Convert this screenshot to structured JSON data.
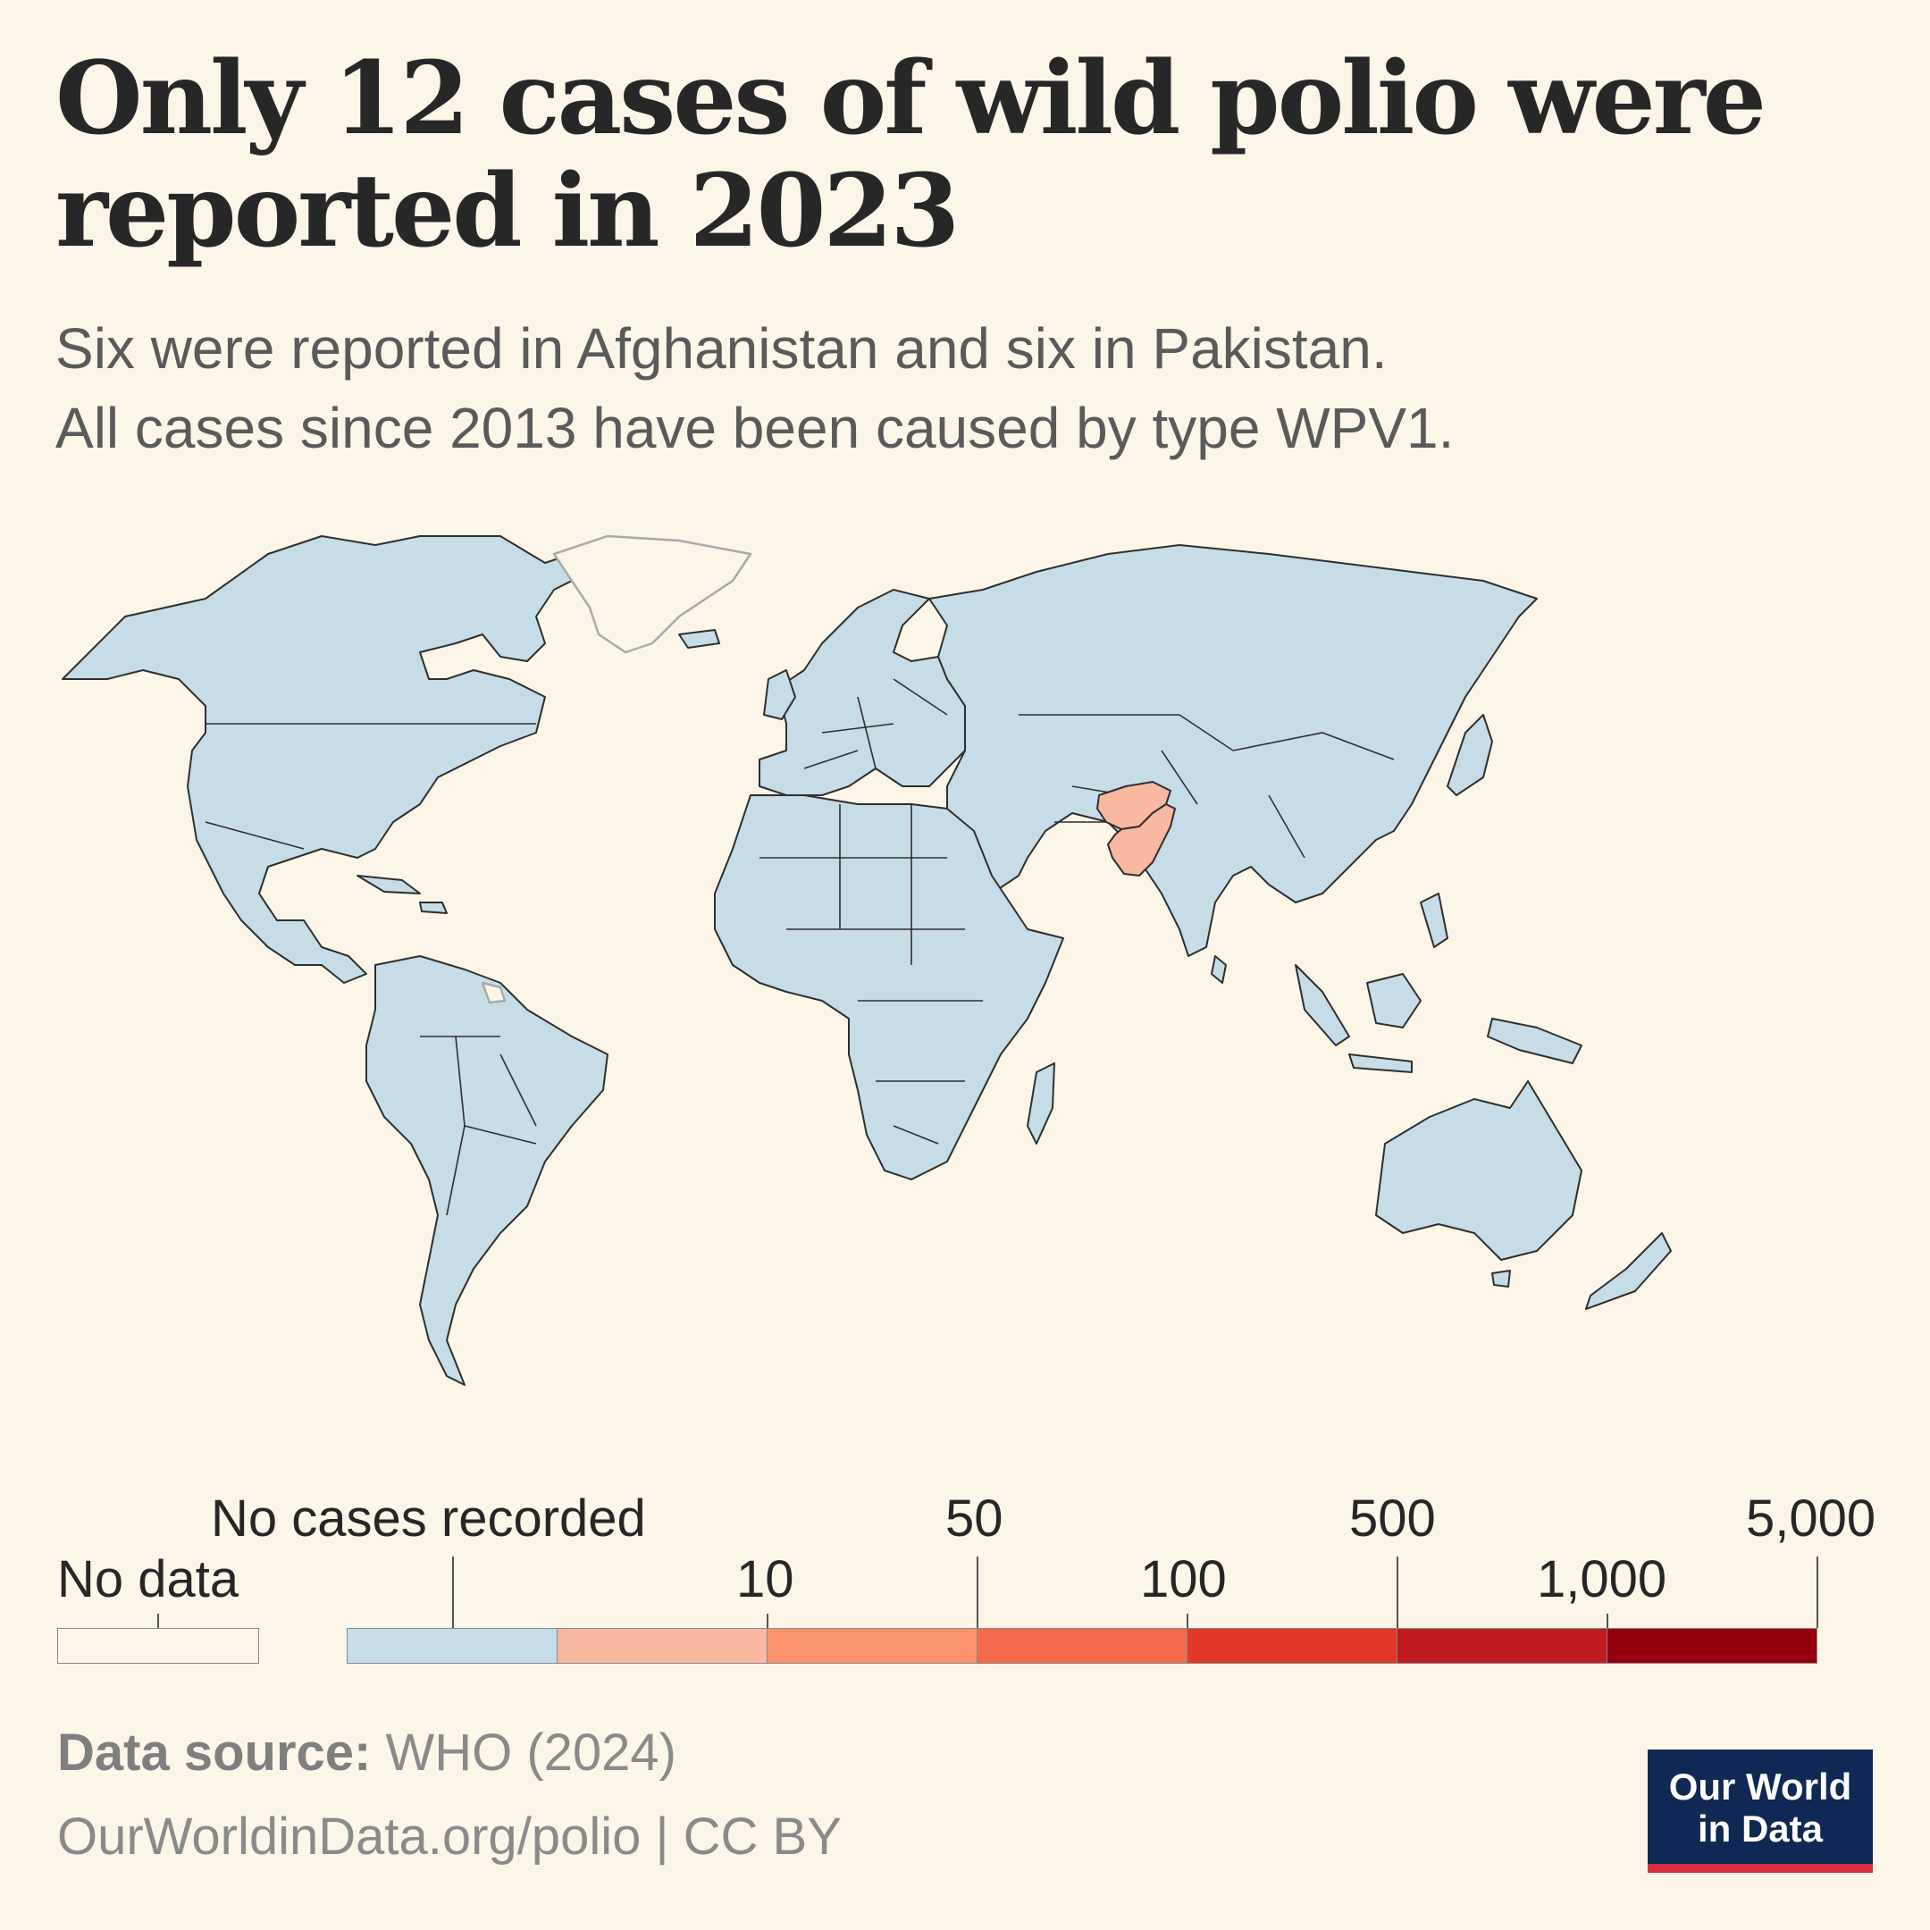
{
  "title_lines": [
    "Only 12 cases of wild polio were",
    "reported in 2023"
  ],
  "subtitle_lines": [
    "Six were reported in Afghanistan and six in Pakistan.",
    "All cases since 2013 have been caused by type WPV1."
  ],
  "legend": {
    "no_data_label": "No data",
    "no_cases_label": "No cases recorded",
    "top_ticks": [
      "50",
      "500",
      "5,000"
    ],
    "bottom_ticks": [
      "10",
      "100",
      "1,000"
    ],
    "colors": {
      "no_data": "#fbf6e8",
      "no_cases": "#c6dde8",
      "bins": [
        "#f9b8a0",
        "#fb9370",
        "#f4694a",
        "#e2372a",
        "#c11a20",
        "#96000e"
      ]
    }
  },
  "chart_data": {
    "type": "choropleth",
    "title": "Only 12 cases of wild polio were reported in 2023",
    "year": 2023,
    "total_cases": 12,
    "regions": [
      {
        "name": "Afghanistan",
        "cases": 6,
        "color": "#f9b8a0"
      },
      {
        "name": "Pakistan",
        "cases": 6,
        "color": "#f9b8a0"
      }
    ],
    "default_category": "No cases recorded",
    "legend_bins": [
      0,
      10,
      50,
      100,
      500,
      1000,
      5000
    ]
  },
  "footer": {
    "source_label": "Data source:",
    "source_value": "WHO (2024)",
    "url": "OurWorldinData.org/polio | CC BY"
  },
  "logo": {
    "line1": "Our World",
    "line2": "in Data"
  }
}
